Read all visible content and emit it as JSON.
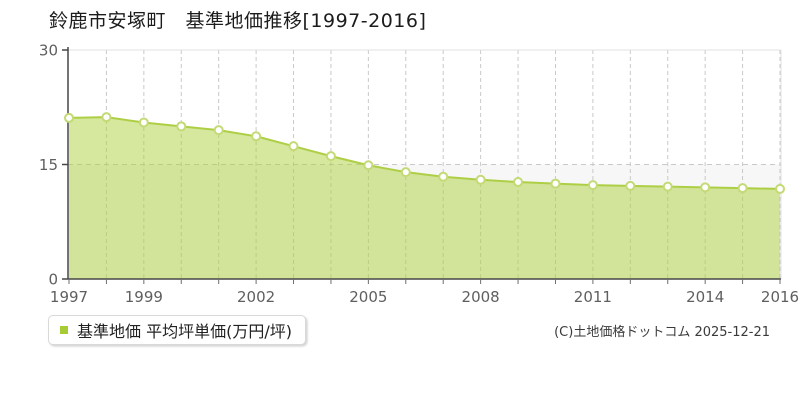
{
  "title": "鈴鹿市安塚町　基準地価推移[1997-2016]",
  "legend": {
    "label": "基準地価 平均坪単価(万円/坪)"
  },
  "copyright": "(C)土地価格ドットコム 2025-12-21",
  "chart_data": {
    "type": "area",
    "title": "鈴鹿市安塚町 基準地価推移[1997-2016]",
    "x": [
      1997,
      1998,
      1999,
      2000,
      2001,
      2002,
      2003,
      2004,
      2005,
      2006,
      2007,
      2008,
      2009,
      2010,
      2011,
      2012,
      2013,
      2014,
      2015,
      2016
    ],
    "series": [
      {
        "name": "基準地価 平均坪単価(万円/坪)",
        "values": [
          21.1,
          21.2,
          20.5,
          20.0,
          19.5,
          18.7,
          17.4,
          16.1,
          14.9,
          14.0,
          13.4,
          13.0,
          12.7,
          12.5,
          12.3,
          12.2,
          12.1,
          12.0,
          11.9,
          11.8
        ]
      }
    ],
    "ylabel": "",
    "xlabel": "",
    "unit": "万円/坪",
    "ylim": [
      0,
      30
    ],
    "yticks": [
      0,
      15,
      30
    ],
    "xtick_labels": [
      1997,
      1999,
      2002,
      2005,
      2008,
      2011,
      2014,
      2016
    ],
    "grid": "dashed",
    "legend_position": "bottom-left",
    "bands": [
      {
        "from": 0,
        "to": 15,
        "color": "#f7f7f7"
      }
    ]
  },
  "colors": {
    "line": "#aecf45",
    "fill": "rgba(174,207,62,0.5)",
    "marker_stroke": "#c3da76",
    "marker_fill": "#ffffff",
    "grid": "#c9c9c9",
    "plot_border": "#e2e2e2",
    "axis": "#464646",
    "minor_tick": "#6e6e6e",
    "tick_label": "#5f5f5f",
    "legend_marker": "#a6cb35"
  }
}
